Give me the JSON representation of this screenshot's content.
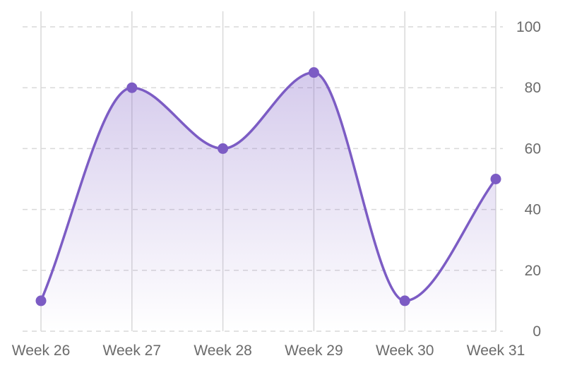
{
  "chart_data": {
    "type": "area",
    "title": "",
    "xlabel": "",
    "ylabel": "",
    "categories": [
      "Week 26",
      "Week 27",
      "Week 28",
      "Week 29",
      "Week 30",
      "Week 31"
    ],
    "series": [
      {
        "values": [
          10,
          80,
          60,
          85,
          10,
          50
        ]
      }
    ],
    "ylim": [
      0,
      100
    ],
    "yticks": [
      0,
      20,
      40,
      60,
      80,
      100
    ],
    "y_axis_side": "right",
    "grid": {
      "horizontal": true,
      "horizontal_style": "dashed",
      "vertical": true
    },
    "curve": "smooth",
    "colors": {
      "line": "#7c5cc4",
      "fill": "#7c5cc4",
      "grid": "#d9d9d9",
      "tick_text": "#6b6b6b"
    }
  }
}
